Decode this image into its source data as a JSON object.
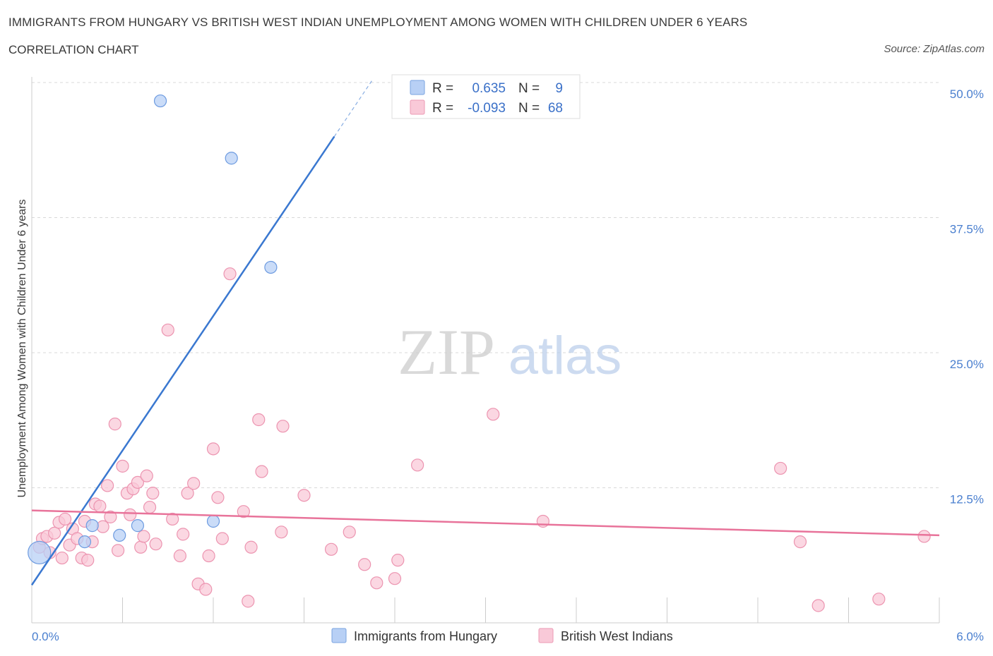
{
  "header": {
    "title": "IMMIGRANTS FROM HUNGARY VS BRITISH WEST INDIAN UNEMPLOYMENT AMONG WOMEN WITH CHILDREN UNDER 6 YEARS",
    "subtitle": "CORRELATION CHART",
    "source": "Source: ZipAtlas.com"
  },
  "watermark": {
    "zip": "ZIP",
    "atlas": "atlas"
  },
  "legend_box": {
    "rows": [
      {
        "r_label": "R =",
        "r_value": "0.635",
        "n_label": "N =",
        "n_value": "9",
        "color": "#b8d0f5",
        "border": "#7aa3e0"
      },
      {
        "r_label": "R =",
        "r_value": "-0.093",
        "n_label": "N =",
        "n_value": "68",
        "color": "#f9c9d8",
        "border": "#ec9ab5"
      }
    ]
  },
  "bottom_legend": [
    {
      "label": "Immigrants from Hungary",
      "color": "#b8d0f5",
      "border": "#7aa3e0"
    },
    {
      "label": "British West Indians",
      "color": "#f9c9d8",
      "border": "#ec9ab5"
    }
  ],
  "chart_data": {
    "type": "scatter",
    "title": "IMMIGRANTS FROM HUNGARY VS BRITISH WEST INDIAN UNEMPLOYMENT AMONG WOMEN WITH CHILDREN UNDER 6 YEARS",
    "xlabel": "",
    "ylabel": "Unemployment Among Women with Children Under 6 years",
    "xlim": [
      0,
      6
    ],
    "ylim": [
      0,
      50
    ],
    "y_ticks": [
      "12.5%",
      "25.0%",
      "37.5%",
      "50.0%"
    ],
    "y_tick_values": [
      12.5,
      25,
      37.5,
      50
    ],
    "x_tick_labels": [
      "0.0%",
      "6.0%"
    ],
    "grid": true,
    "series": [
      {
        "name": "Immigrants from Hungary",
        "color": "#b8d0f5",
        "edge": "#6d9be0",
        "points": [
          {
            "x": 0.05,
            "y": 6.5,
            "big": true
          },
          {
            "x": 0.35,
            "y": 7.5
          },
          {
            "x": 0.4,
            "y": 9.0
          },
          {
            "x": 0.58,
            "y": 8.1
          },
          {
            "x": 0.7,
            "y": 9.0
          },
          {
            "x": 0.85,
            "y": 48.3
          },
          {
            "x": 1.2,
            "y": 9.4
          },
          {
            "x": 1.32,
            "y": 43.0
          },
          {
            "x": 1.58,
            "y": 32.9
          }
        ],
        "trend": {
          "x0": 0.0,
          "y0": 3.5,
          "x1": 2.0,
          "y1": 45.0,
          "dash_x1": 2.25,
          "dash_y1": 50.2,
          "color": "#3a78d0"
        }
      },
      {
        "name": "British West Indians",
        "color": "#f9c9d8",
        "edge": "#ec94b0",
        "points": [
          {
            "x": 0.05,
            "y": 7.0
          },
          {
            "x": 0.07,
            "y": 7.8
          },
          {
            "x": 0.1,
            "y": 8.0
          },
          {
            "x": 0.12,
            "y": 6.5
          },
          {
            "x": 0.15,
            "y": 8.3
          },
          {
            "x": 0.18,
            "y": 9.3
          },
          {
            "x": 0.2,
            "y": 6.0
          },
          {
            "x": 0.22,
            "y": 9.6
          },
          {
            "x": 0.25,
            "y": 7.2
          },
          {
            "x": 0.27,
            "y": 8.7
          },
          {
            "x": 0.3,
            "y": 7.8
          },
          {
            "x": 0.33,
            "y": 6.0
          },
          {
            "x": 0.35,
            "y": 9.4
          },
          {
            "x": 0.37,
            "y": 5.8
          },
          {
            "x": 0.4,
            "y": 7.5
          },
          {
            "x": 0.42,
            "y": 11.0
          },
          {
            "x": 0.45,
            "y": 10.8
          },
          {
            "x": 0.47,
            "y": 8.9
          },
          {
            "x": 0.5,
            "y": 12.7
          },
          {
            "x": 0.52,
            "y": 9.8
          },
          {
            "x": 0.55,
            "y": 18.4
          },
          {
            "x": 0.57,
            "y": 6.7
          },
          {
            "x": 0.6,
            "y": 14.5
          },
          {
            "x": 0.63,
            "y": 12.0
          },
          {
            "x": 0.65,
            "y": 10.0
          },
          {
            "x": 0.67,
            "y": 12.4
          },
          {
            "x": 0.7,
            "y": 13.0
          },
          {
            "x": 0.72,
            "y": 7.0
          },
          {
            "x": 0.74,
            "y": 8.0
          },
          {
            "x": 0.76,
            "y": 13.6
          },
          {
            "x": 0.78,
            "y": 10.7
          },
          {
            "x": 0.8,
            "y": 12.0
          },
          {
            "x": 0.82,
            "y": 7.3
          },
          {
            "x": 0.9,
            "y": 27.1
          },
          {
            "x": 0.93,
            "y": 9.6
          },
          {
            "x": 0.98,
            "y": 6.2
          },
          {
            "x": 1.0,
            "y": 8.2
          },
          {
            "x": 1.03,
            "y": 12.0
          },
          {
            "x": 1.07,
            "y": 12.9
          },
          {
            "x": 1.1,
            "y": 3.6
          },
          {
            "x": 1.15,
            "y": 3.1
          },
          {
            "x": 1.17,
            "y": 6.2
          },
          {
            "x": 1.2,
            "y": 16.1
          },
          {
            "x": 1.23,
            "y": 11.6
          },
          {
            "x": 1.26,
            "y": 7.8
          },
          {
            "x": 1.31,
            "y": 32.3
          },
          {
            "x": 1.4,
            "y": 10.3
          },
          {
            "x": 1.43,
            "y": 2.0
          },
          {
            "x": 1.45,
            "y": 7.0
          },
          {
            "x": 1.5,
            "y": 18.8
          },
          {
            "x": 1.52,
            "y": 14.0
          },
          {
            "x": 1.65,
            "y": 8.4
          },
          {
            "x": 1.66,
            "y": 18.2
          },
          {
            "x": 1.8,
            "y": 11.8
          },
          {
            "x": 1.98,
            "y": 6.8
          },
          {
            "x": 2.1,
            "y": 8.4
          },
          {
            "x": 2.2,
            "y": 5.4
          },
          {
            "x": 2.28,
            "y": 3.7
          },
          {
            "x": 2.4,
            "y": 4.1
          },
          {
            "x": 2.42,
            "y": 5.8
          },
          {
            "x": 2.55,
            "y": 14.6
          },
          {
            "x": 3.05,
            "y": 19.3
          },
          {
            "x": 3.38,
            "y": 9.4
          },
          {
            "x": 4.95,
            "y": 14.3
          },
          {
            "x": 5.08,
            "y": 7.5
          },
          {
            "x": 5.2,
            "y": 1.6
          },
          {
            "x": 5.6,
            "y": 2.2
          },
          {
            "x": 5.9,
            "y": 8.0
          }
        ],
        "trend": {
          "x0": 0.0,
          "y0": 10.4,
          "x1": 6.0,
          "y1": 8.1,
          "color": "#e8739a"
        }
      }
    ]
  }
}
